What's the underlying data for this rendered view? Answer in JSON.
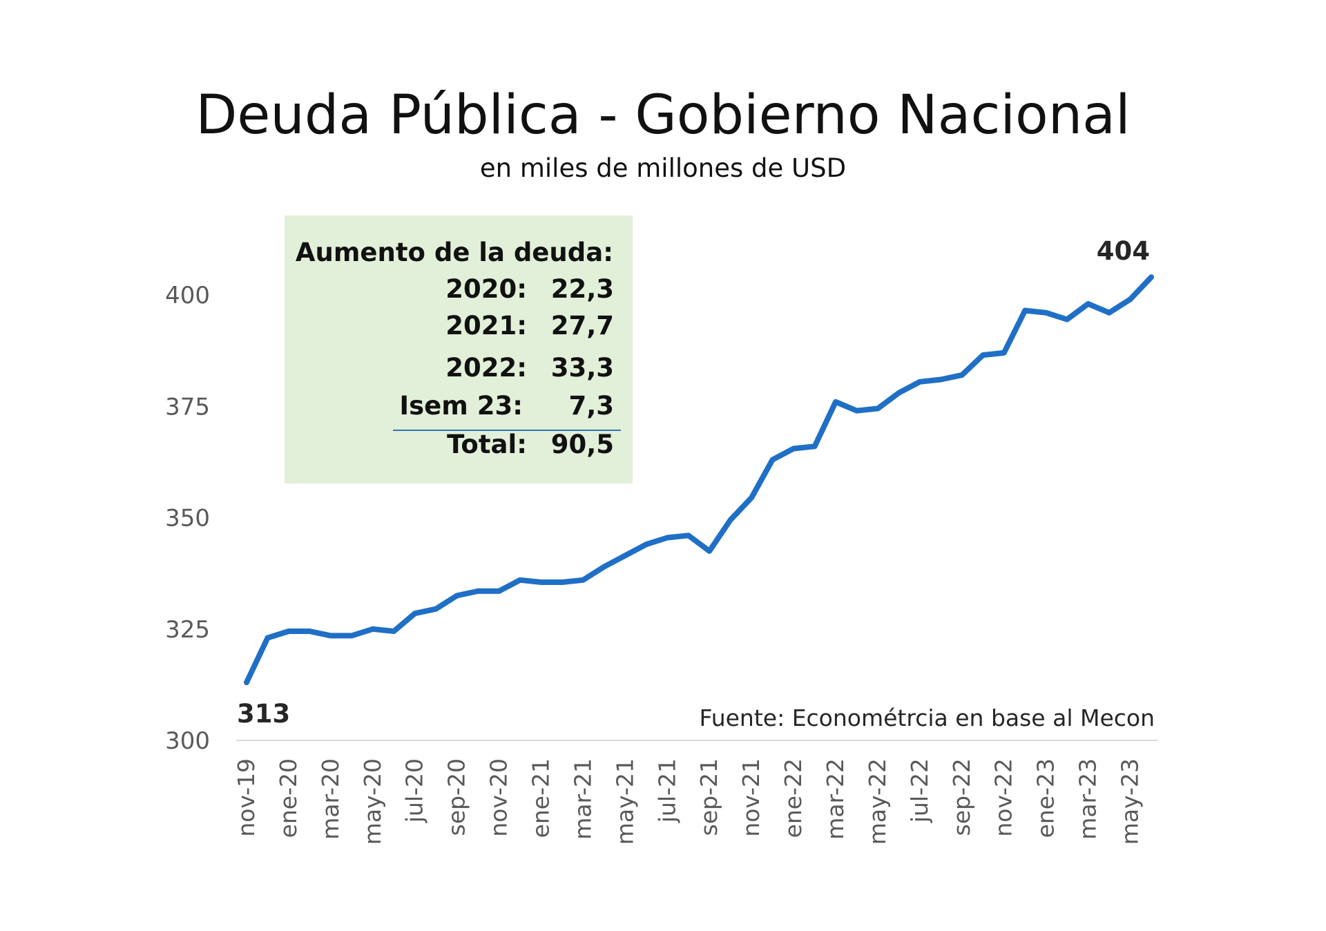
{
  "chart_data": {
    "type": "line",
    "title": "Deuda Pública - Gobierno Nacional",
    "subtitle": "en miles de millones de USD",
    "xlabel": "",
    "ylabel": "",
    "ylim": [
      300,
      410
    ],
    "yticks": [
      300,
      325,
      350,
      375,
      400
    ],
    "grid": false,
    "series": [
      {
        "name": "Deuda Pública",
        "color": "#1f6fc6",
        "values": [
          313.0,
          323.0,
          324.5,
          324.5,
          323.5,
          323.5,
          325.0,
          324.5,
          328.5,
          329.5,
          332.5,
          333.5,
          333.5,
          336.0,
          335.5,
          335.5,
          336.0,
          339.0,
          341.5,
          344.0,
          345.5,
          346.0,
          342.5,
          349.5,
          354.5,
          363.0,
          365.5,
          366.0,
          376.0,
          374.0,
          374.5,
          378.0,
          380.5,
          381.0,
          382.0,
          386.5,
          387.0,
          396.5,
          396.0,
          394.5,
          398.0,
          396.0,
          399.0,
          404.0
        ]
      }
    ],
    "xtick_labels": [
      "nov-19",
      "ene-20",
      "mar-20",
      "may-20",
      "jul-20",
      "sep-20",
      "nov-20",
      "ene-21",
      "mar-21",
      "may-21",
      "jul-21",
      "sep-21",
      "nov-21",
      "ene-22",
      "mar-22",
      "may-22",
      "jul-22",
      "sep-22",
      "nov-22",
      "ene-23",
      "mar-23",
      "may-23"
    ],
    "data_labels": {
      "first": "313",
      "last": "404"
    },
    "source": "Fuente: Econométrcia en base al Mecon"
  },
  "summary_box": {
    "heading": "Aumento de la deuda:",
    "rows": [
      {
        "label": "2020:",
        "value": "22,3"
      },
      {
        "label": "2021:",
        "value": "27,7"
      },
      {
        "label": "2022:",
        "value": "33,3"
      },
      {
        "label": "Isem 23:",
        "value": "7,3"
      },
      {
        "label": "Total:",
        "value": "90,5"
      }
    ]
  },
  "colors": {
    "line": "#1f6fc6",
    "box_bg": "#e2efd9",
    "box_rule": "#2e75b6"
  }
}
